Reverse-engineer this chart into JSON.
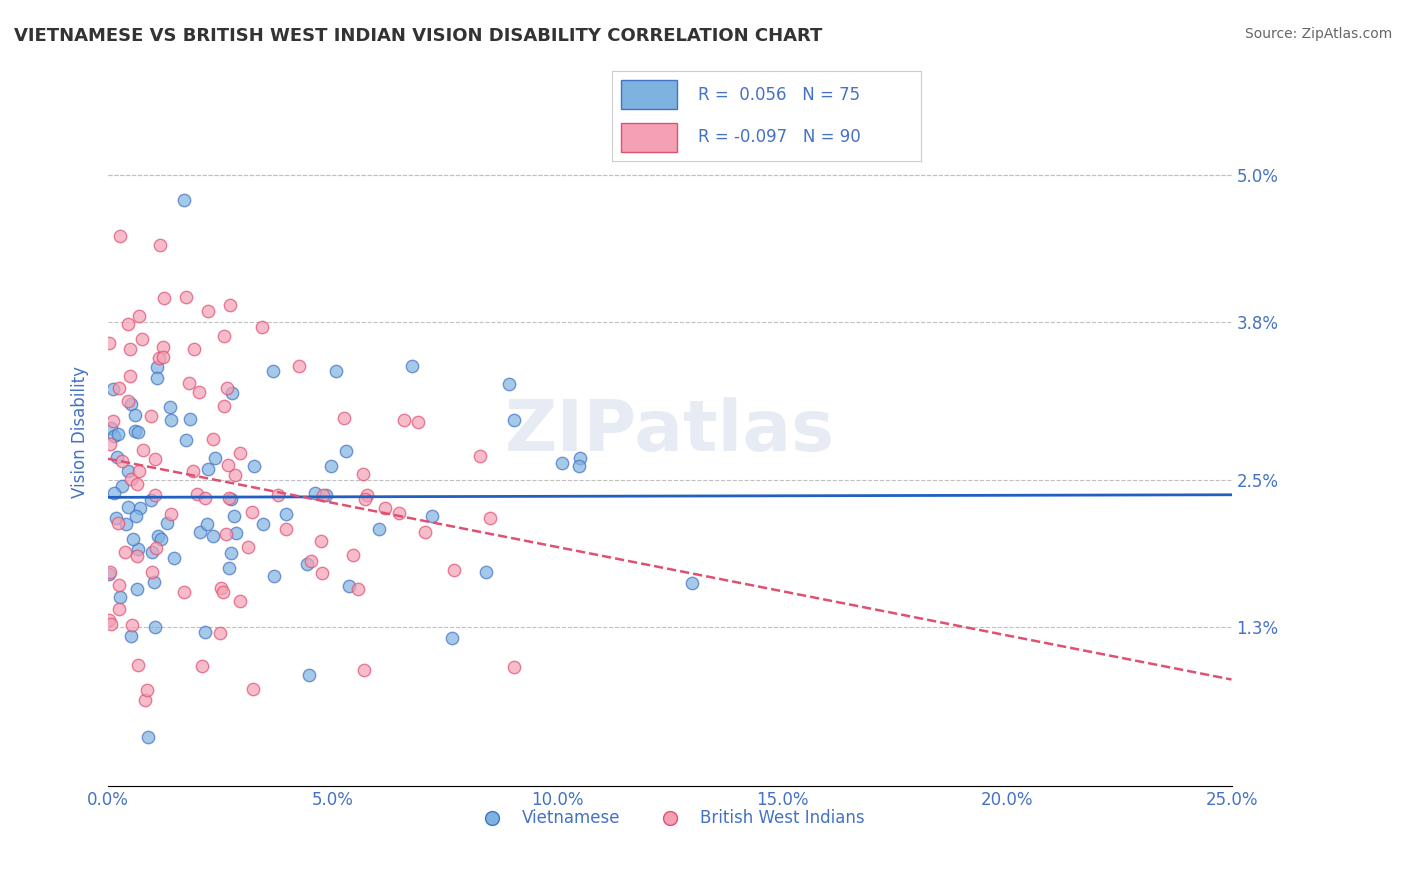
{
  "title": "VIETNAMESE VS BRITISH WEST INDIAN VISION DISABILITY CORRELATION CHART",
  "source": "Source: ZipAtlas.com",
  "xlabel": "",
  "ylabel": "Vision Disability",
  "xlim": [
    0.0,
    0.25
  ],
  "ylim": [
    0.0,
    0.055
  ],
  "xticks": [
    0.0,
    0.05,
    0.1,
    0.15,
    0.2,
    0.25
  ],
  "xticklabels": [
    "0.0%",
    "5.0%",
    "10.0%",
    "15.0%",
    "20.0%",
    "25.0%"
  ],
  "yticks": [
    0.013,
    0.025,
    0.038,
    0.05
  ],
  "yticklabels": [
    "1.3%",
    "2.5%",
    "3.8%",
    "5.0%"
  ],
  "legend_r1": "R =  0.056",
  "legend_n1": "N = 75",
  "legend_r2": "R = -0.097",
  "legend_n2": "N = 90",
  "color_vietnamese": "#7eb3e0",
  "color_bwi": "#f4a0b5",
  "color_text": "#4472c4",
  "color_grid": "#c0c0c0",
  "background_color": "#ffffff",
  "watermark": "ZIPatlas",
  "seed": 42,
  "vietnamese_R": 0.056,
  "vietnamese_N": 75,
  "bwi_R": -0.097,
  "bwi_N": 90,
  "scatter_size": 80,
  "scatter_alpha": 0.7,
  "scatter_linewidth": 1.0,
  "scatter_edgecolor_vi": "#4472c4",
  "scatter_edgecolor_bwi": "#e05070"
}
